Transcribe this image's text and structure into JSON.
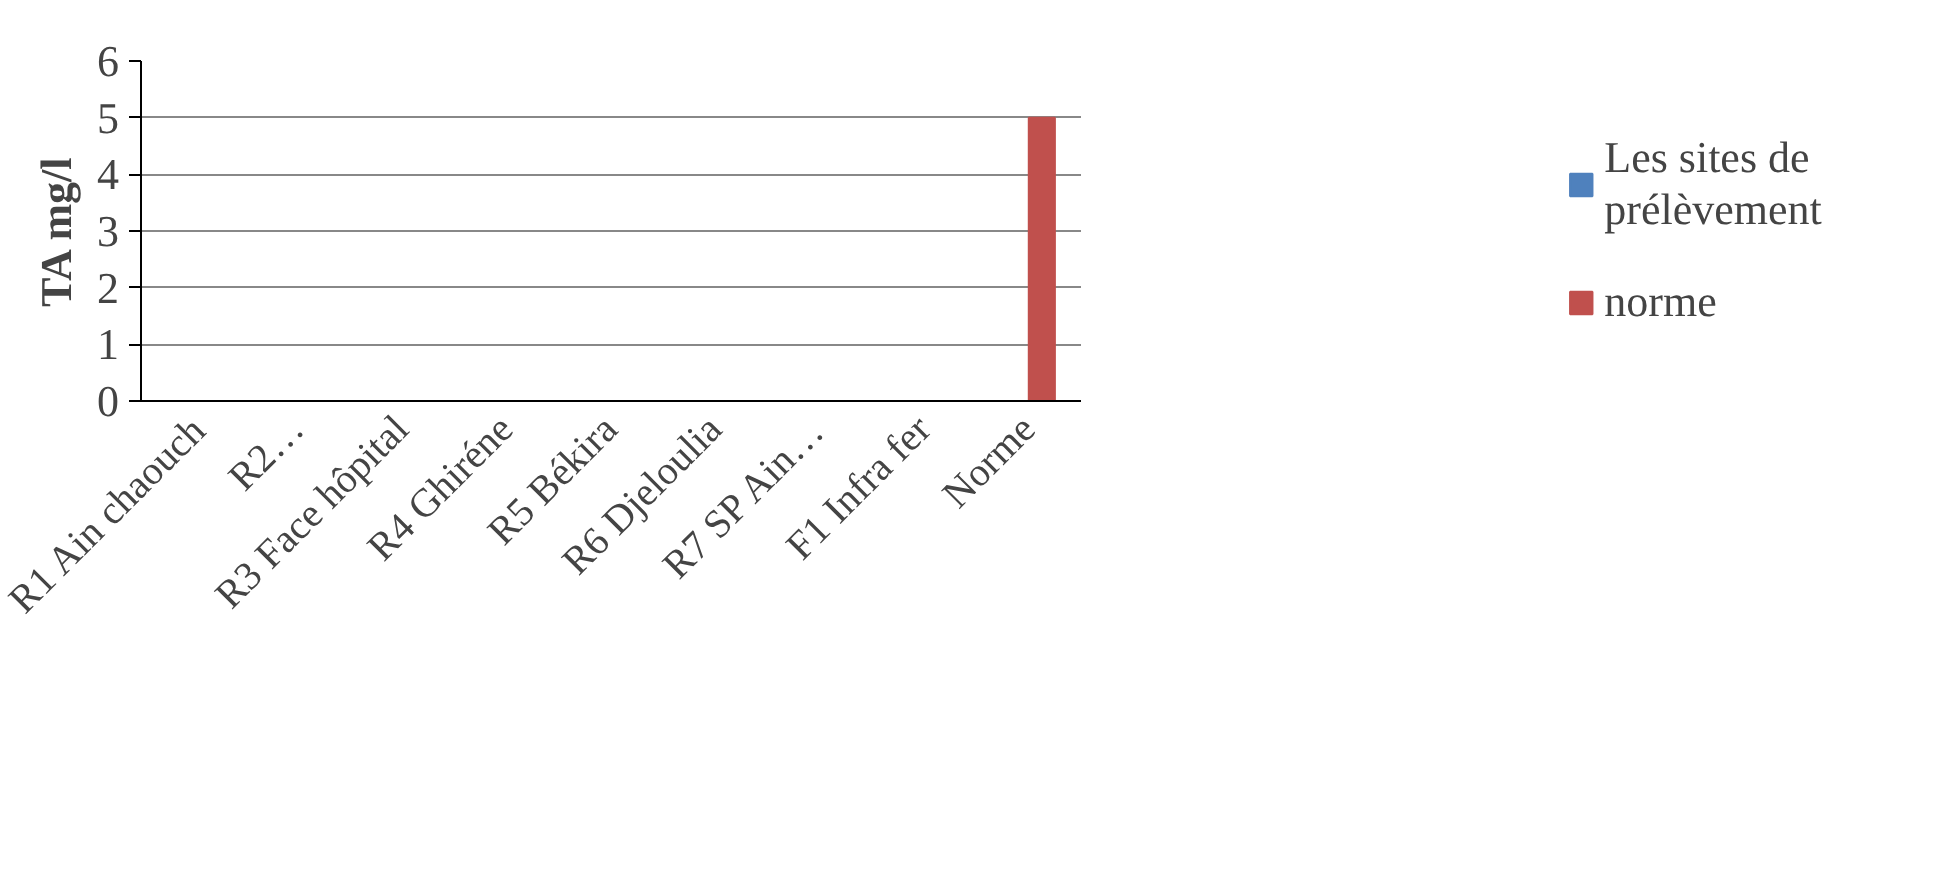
{
  "chart_data": {
    "type": "bar",
    "ylabel": "TA mg/l",
    "categories": [
      "R1 Ain chaouch",
      "R2…",
      "R3 Face hôpital",
      "R4 Ghiréne",
      "R5 Békira",
      "R6 Djeloulia",
      "R7 SP Ain…",
      "F1 Infra fer",
      "Norme"
    ],
    "series": [
      {
        "name": "Les sites de prélèvement",
        "color": "#4f81bd",
        "values": [
          0,
          0,
          0,
          0,
          0,
          0,
          0,
          0,
          null
        ]
      },
      {
        "name": "norme",
        "color": "#c0504d",
        "values": [
          null,
          null,
          null,
          null,
          null,
          null,
          null,
          null,
          5
        ]
      }
    ],
    "ylim": [
      0,
      6
    ],
    "yticks": [
      0,
      1,
      2,
      3,
      4,
      5,
      6
    ],
    "grid": "y",
    "legend": "right"
  }
}
